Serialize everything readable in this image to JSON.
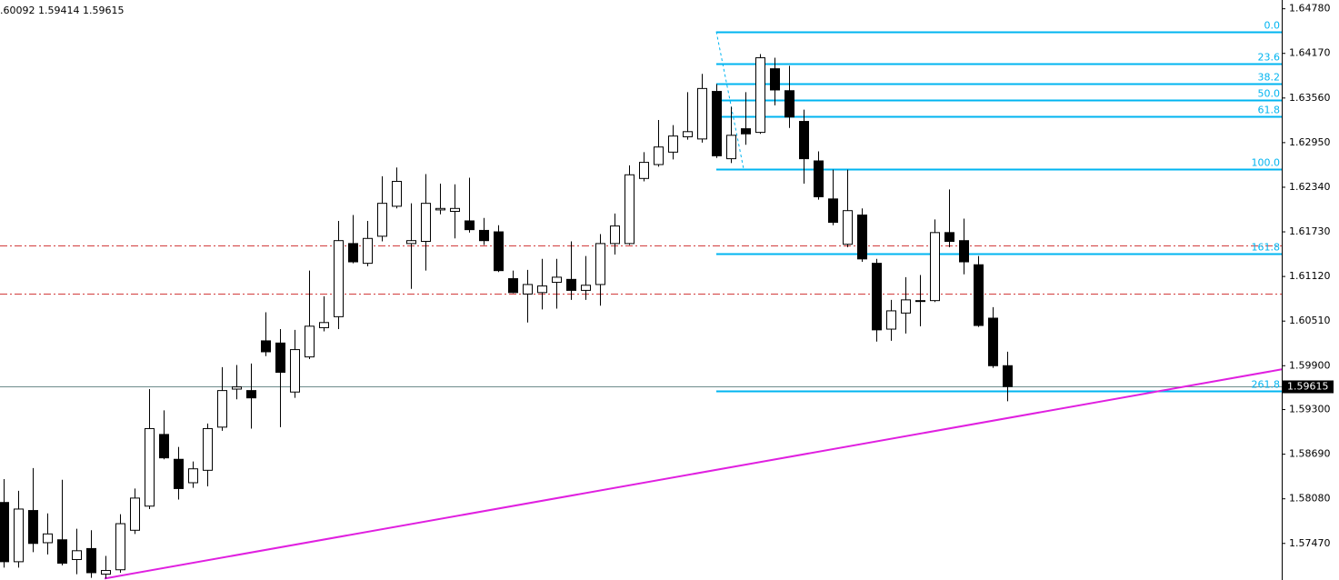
{
  "chart_data": {
    "type": "candlestick",
    "header": ".60092 1.59414 1.59615",
    "open": [
      1.5803,
      1.5722,
      1.5792,
      1.5748,
      1.5752,
      1.5725,
      1.574,
      1.5705,
      1.5711,
      1.5765,
      1.5798,
      1.5896,
      1.5862,
      1.583,
      1.5847,
      1.5906,
      1.5958,
      1.5956,
      1.6024,
      1.6021,
      1.5954,
      1.6002,
      1.6042,
      1.6057,
      1.6157,
      1.613,
      1.6167,
      1.6208,
      1.6157,
      1.616,
      1.6203,
      1.6201,
      1.6188,
      1.6175,
      1.6173,
      1.6109,
      1.6088,
      1.609,
      1.6104,
      1.6108,
      1.6093,
      1.6101,
      1.6157,
      1.6157,
      1.6246,
      1.6265,
      1.6282,
      1.6303,
      1.63,
      1.6365,
      1.6273,
      1.6314,
      1.6309,
      1.6396,
      1.6366,
      1.6324,
      1.627,
      1.6218,
      1.6156,
      1.6196,
      1.613,
      1.604,
      1.6062,
      1.6078,
      1.6079,
      1.6172,
      1.6161,
      1.6128,
      1.6055,
      1.599
    ],
    "high": [
      1.5835,
      1.5819,
      1.585,
      1.5788,
      1.5834,
      1.5767,
      1.5765,
      1.573,
      1.5787,
      1.5822,
      1.5958,
      1.5929,
      1.5879,
      1.5859,
      1.5911,
      1.5988,
      1.5991,
      1.5993,
      1.6063,
      1.604,
      1.6039,
      1.612,
      1.6085,
      1.6188,
      1.6196,
      1.6188,
      1.6249,
      1.6261,
      1.6212,
      1.6252,
      1.6239,
      1.6238,
      1.6247,
      1.6192,
      1.6182,
      1.612,
      1.6121,
      1.6136,
      1.6136,
      1.616,
      1.614,
      1.617,
      1.6198,
      1.6264,
      1.6282,
      1.6326,
      1.6319,
      1.6364,
      1.6389,
      1.6375,
      1.6344,
      1.6364,
      1.6416,
      1.6411,
      1.64,
      1.634,
      1.6283,
      1.6258,
      1.6258,
      1.6205,
      1.6136,
      1.608,
      1.6111,
      1.6114,
      1.619,
      1.6231,
      1.6191,
      1.614,
      1.607,
      1.60092
    ],
    "low": [
      1.5714,
      1.5714,
      1.5735,
      1.5732,
      1.5717,
      1.5705,
      1.57,
      1.5699,
      1.5707,
      1.576,
      1.5794,
      1.5862,
      1.5807,
      1.5823,
      1.5825,
      1.5901,
      1.5944,
      1.5904,
      1.6003,
      1.5906,
      1.5946,
      1.5999,
      1.6037,
      1.604,
      1.613,
      1.6126,
      1.616,
      1.6205,
      1.6095,
      1.612,
      1.6197,
      1.6164,
      1.6172,
      1.6155,
      1.6118,
      1.6089,
      1.6049,
      1.6067,
      1.6068,
      1.608,
      1.608,
      1.6072,
      1.6142,
      1.6155,
      1.6242,
      1.6262,
      1.6272,
      1.6299,
      1.6295,
      1.6274,
      1.6267,
      1.6292,
      1.6307,
      1.6346,
      1.6315,
      1.6239,
      1.6217,
      1.6182,
      1.6152,
      1.6132,
      1.6023,
      1.6024,
      1.6034,
      1.6044,
      1.6077,
      1.6152,
      1.6115,
      1.6043,
      1.5987,
      1.59414
    ],
    "close": [
      1.5722,
      1.5794,
      1.5747,
      1.576,
      1.572,
      1.5737,
      1.5707,
      1.571,
      1.5774,
      1.5809,
      1.5904,
      1.5864,
      1.5822,
      1.5849,
      1.5904,
      1.5956,
      1.5961,
      1.5946,
      1.6009,
      1.5981,
      1.6012,
      1.6044,
      1.6049,
      1.6161,
      1.6132,
      1.6164,
      1.6212,
      1.6242,
      1.6161,
      1.6212,
      1.6205,
      1.6205,
      1.6176,
      1.6161,
      1.612,
      1.609,
      1.6101,
      1.6099,
      1.6111,
      1.6093,
      1.61,
      1.6157,
      1.6181,
      1.6251,
      1.6268,
      1.6289,
      1.6304,
      1.631,
      1.6369,
      1.6277,
      1.6305,
      1.6307,
      1.6411,
      1.6367,
      1.633,
      1.6273,
      1.6221,
      1.6186,
      1.6202,
      1.6136,
      1.6039,
      1.6065,
      1.608,
      1.6079,
      1.6172,
      1.616,
      1.6132,
      1.6045,
      1.599,
      1.59615
    ],
    "up_color": "#ffffff",
    "down_color": "#000000",
    "ylim": [
      1.5697,
      1.649
    ],
    "yticks": [
      {
        "value": 1.6478,
        "label": "1.64780"
      },
      {
        "value": 1.6417,
        "label": "1.64170"
      },
      {
        "value": 1.6356,
        "label": "1.63560"
      },
      {
        "value": 1.6295,
        "label": "1.62950"
      },
      {
        "value": 1.6234,
        "label": "1.62340"
      },
      {
        "value": 1.6173,
        "label": "1.61730"
      },
      {
        "value": 1.6112,
        "label": "1.61120"
      },
      {
        "value": 1.6051,
        "label": "1.60510"
      },
      {
        "value": 1.599,
        "label": "1.59900"
      },
      {
        "value": 1.593,
        "label": "1.59300"
      },
      {
        "value": 1.5869,
        "label": "1.58690"
      },
      {
        "value": 1.5808,
        "label": "1.58080"
      },
      {
        "value": 1.5747,
        "label": "1.57470"
      }
    ],
    "last_price": 1.59615,
    "last_price_color": "#6e8c8c",
    "fibonacci": {
      "anchor_high": 1.64469,
      "anchor_low": 1.62592,
      "color": "#00b4f0",
      "levels": [
        {
          "value": 0,
          "label": "0.0"
        },
        23.6,
        38.2,
        {
          "value": 50,
          "label": "50.0"
        },
        61.8,
        {
          "value": 100,
          "label": "100.0"
        },
        161.8,
        261.8
      ]
    },
    "horizontal_lines": {
      "color": "#d23c3c",
      "prices": [
        1.6154,
        1.6088
      ]
    },
    "trendline": {
      "color": "#e020e0",
      "start": 1.5699,
      "end": 1.5985
    }
  }
}
